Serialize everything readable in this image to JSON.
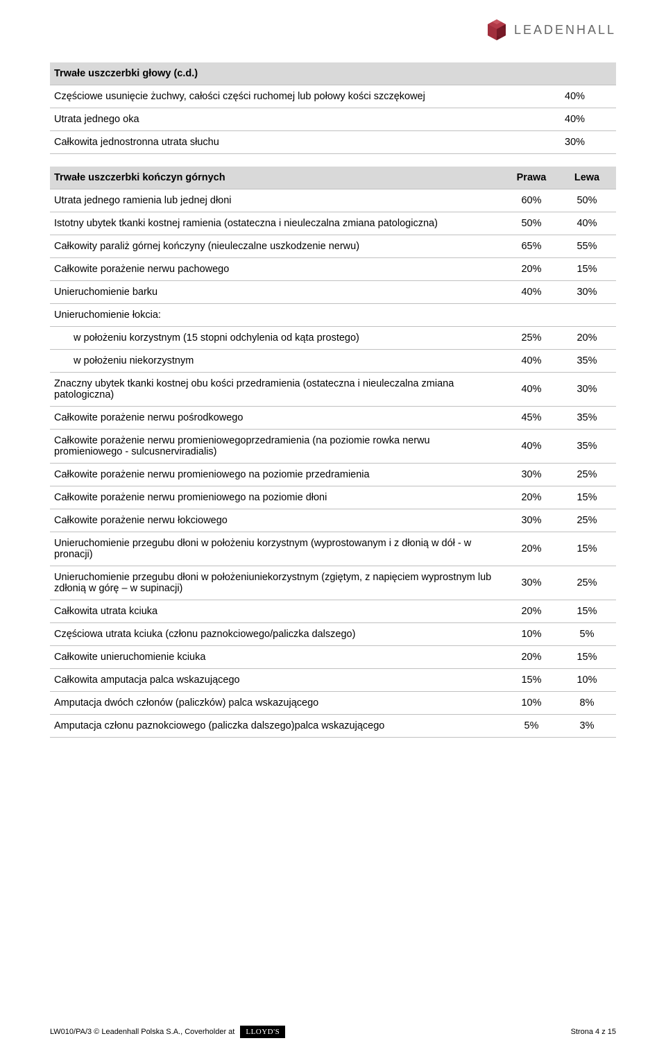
{
  "brand": {
    "name": "LEADENHALL"
  },
  "table1": {
    "header": "Trwałe uszczerbki głowy (c.d.)",
    "rows": [
      {
        "label": "Częściowe usunięcie żuchwy, całości części ruchomej lub połowy kości szczękowej",
        "v": "40%"
      },
      {
        "label": "Utrata jednego oka",
        "v": "40%"
      },
      {
        "label": "Całkowita jednostronna utrata słuchu",
        "v": "30%"
      }
    ]
  },
  "table2": {
    "header": {
      "label": "Trwałe uszczerbki kończyn górnych",
      "c1": "Prawa",
      "c2": "Lewa"
    },
    "rows": [
      {
        "label": "Utrata jednego ramienia lub jednej dłoni",
        "c1": "60%",
        "c2": "50%"
      },
      {
        "label": "Istotny ubytek tkanki kostnej ramienia (ostateczna i nieuleczalna zmiana patologiczna)",
        "c1": "50%",
        "c2": "40%"
      },
      {
        "label": "Całkowity paraliż górnej kończyny (nieuleczalne uszkodzenie nerwu)",
        "c1": "65%",
        "c2": "55%"
      },
      {
        "label": "Całkowite porażenie nerwu pachowego",
        "c1": "20%",
        "c2": "15%"
      },
      {
        "label": "Unieruchomienie barku",
        "c1": "40%",
        "c2": "30%"
      },
      {
        "label": "Unieruchomienie łokcia:",
        "c1": "",
        "c2": "",
        "sub": true
      },
      {
        "label": "w położeniu korzystnym (15 stopni odchylenia od kąta prostego)",
        "c1": "25%",
        "c2": "20%",
        "indent": true
      },
      {
        "label": "w położeniu niekorzystnym",
        "c1": "40%",
        "c2": "35%",
        "indent": true
      },
      {
        "label": "Znaczny ubytek tkanki kostnej obu kości przedramienia (ostateczna i nieuleczalna zmiana patologiczna)",
        "c1": "40%",
        "c2": "30%"
      },
      {
        "label": "Całkowite porażenie nerwu pośrodkowego",
        "c1": "45%",
        "c2": "35%"
      },
      {
        "label": "Całkowite porażenie nerwu promieniowegoprzedramienia (na poziomie rowka nerwu promieniowego - sulcusnerviradialis)",
        "c1": "40%",
        "c2": "35%"
      },
      {
        "label": "Całkowite porażenie nerwu promieniowego na poziomie przedramienia",
        "c1": "30%",
        "c2": "25%"
      },
      {
        "label": "Całkowite porażenie nerwu promieniowego na poziomie dłoni",
        "c1": "20%",
        "c2": "15%"
      },
      {
        "label": "Całkowite porażenie nerwu łokciowego",
        "c1": "30%",
        "c2": "25%"
      },
      {
        "label": "Unieruchomienie przegubu dłoni w położeniu korzystnym (wyprostowanym i z dłonią w dół - w pronacji)",
        "c1": "20%",
        "c2": "15%"
      },
      {
        "label": "Unieruchomienie przegubu dłoni w położeniuniekorzystnym (zgiętym, z napięciem wyprostnym lub zdłonią w górę – w supinacji)",
        "c1": "30%",
        "c2": "25%"
      },
      {
        "label": "Całkowita utrata kciuka",
        "c1": "20%",
        "c2": "15%"
      },
      {
        "label": "Częściowa utrata kciuka (członu paznokciowego/paliczka dalszego)",
        "c1": "10%",
        "c2": "5%"
      },
      {
        "label": "Całkowite unieruchomienie kciuka",
        "c1": "20%",
        "c2": "15%"
      },
      {
        "label": "Całkowita amputacja palca wskazującego",
        "c1": "15%",
        "c2": "10%"
      },
      {
        "label": "Amputacja dwóch członów (paliczków) palca wskazującego",
        "c1": "10%",
        "c2": "8%"
      },
      {
        "label": "Amputacja członu paznokciowego (paliczka dalszego)palca wskazującego",
        "c1": "5%",
        "c2": "3%"
      }
    ]
  },
  "footer": {
    "left": "LW010/PA/3 © Leadenhall Polska S.A., Coverholder at",
    "lloyds": "LLOYD'S",
    "right": "Strona 4 z 15"
  }
}
